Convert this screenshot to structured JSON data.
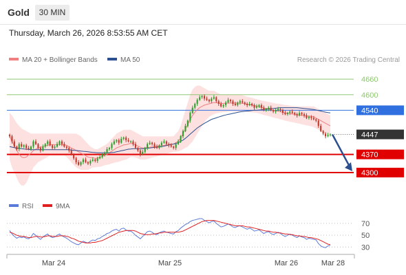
{
  "header": {
    "symbol": "Gold",
    "timeframe": "30 MIN",
    "datetime": "Thursday, March 26, 2026 8:53:55 AM CET"
  },
  "legend": {
    "ma20_label": "MA 20 + Bollinger Bands",
    "ma50_label": "MA 50",
    "copyright": "Research © 2026 Trading Central",
    "rsi_label": "RSI",
    "rsi_ma_label": "9MA"
  },
  "colors": {
    "ma20": "#f08080",
    "ma50": "#2b4f8f",
    "band_fill": "#fde0e0",
    "candle_up": "#2e9e2e",
    "candle_down": "#c0392b",
    "resistance": "#8fc873",
    "pivot": "#2f6fdf",
    "support": "#e00000",
    "current": "#333333",
    "arrow": "#2b4f8f",
    "rsi": "#5a7bd8",
    "rsi_ma": "#e02020"
  },
  "chart_data": [
    {
      "type": "candlestick",
      "ylim": [
        4210,
        4700
      ],
      "x_ticks": [
        "Mar 24",
        "Mar 25",
        "Mar 26",
        "Mar 28"
      ],
      "levels": [
        {
          "value": 4660,
          "label": "4660",
          "kind": "resistance"
        },
        {
          "value": 4600,
          "label": "4600",
          "kind": "resistance"
        },
        {
          "value": 4540,
          "label": "4540",
          "kind": "pivot"
        },
        {
          "value": 4447,
          "label": "4447",
          "kind": "current"
        },
        {
          "value": 4370,
          "label": "4370",
          "kind": "support"
        },
        {
          "value": 4300,
          "label": "4300",
          "kind": "support"
        }
      ],
      "close": [
        4440,
        4420,
        4400,
        4390,
        4410,
        4400,
        4405,
        4395,
        4390,
        4400,
        4420,
        4410,
        4395,
        4385,
        4400,
        4410,
        4420,
        4405,
        4395,
        4400,
        4410,
        4420,
        4410,
        4400,
        4395,
        4385,
        4370,
        4355,
        4340,
        4330,
        4340,
        4350,
        4340,
        4335,
        4345,
        4350,
        4345,
        4355,
        4360,
        4370,
        4375,
        4390,
        4395,
        4410,
        4420,
        4425,
        4415,
        4430,
        4435,
        4425,
        4420,
        4420,
        4410,
        4395,
        4385,
        4370,
        4380,
        4395,
        4410,
        4415,
        4410,
        4400,
        4395,
        4405,
        4415,
        4420,
        4410,
        4405,
        4400,
        4395,
        4410,
        4420,
        4440,
        4460,
        4480,
        4500,
        4530,
        4550,
        4565,
        4580,
        4590,
        4595,
        4585,
        4580,
        4575,
        4585,
        4590,
        4575,
        4565,
        4555,
        4560,
        4570,
        4580,
        4575,
        4565,
        4560,
        4570,
        4575,
        4570,
        4565,
        4560,
        4565,
        4560,
        4550,
        4555,
        4560,
        4550,
        4540,
        4545,
        4550,
        4540,
        4535,
        4540,
        4545,
        4540,
        4530,
        4525,
        4530,
        4535,
        4530,
        4525,
        4520,
        4530,
        4525,
        4520,
        4510,
        4515,
        4510,
        4505,
        4500,
        4480,
        4460,
        4450,
        4440,
        4445,
        4447
      ],
      "bollinger_upper": [
        4530,
        4520,
        4505,
        4490,
        4480,
        4470,
        4465,
        4460,
        4455,
        4450,
        4450,
        4450,
        4450,
        4450,
        4450,
        4450,
        4450,
        4450,
        4450,
        4450,
        4450,
        4450,
        4450,
        4450,
        4450,
        4450,
        4450,
        4450,
        4450,
        4445,
        4440,
        4430,
        4420,
        4410,
        4400,
        4395,
        4390,
        4390,
        4395,
        4400,
        4405,
        4410,
        4420,
        4430,
        4440,
        4450,
        4455,
        4460,
        4465,
        4465,
        4465,
        4465,
        4460,
        4455,
        4450,
        4445,
        4440,
        4440,
        4440,
        4440,
        4440,
        4440,
        4440,
        4440,
        4440,
        4440,
        4440,
        4440,
        4440,
        4440,
        4450,
        4460,
        4480,
        4510,
        4540,
        4570,
        4600,
        4620,
        4630,
        4635,
        4635,
        4630,
        4625,
        4620,
        4615,
        4615,
        4615,
        4610,
        4605,
        4600,
        4600,
        4600,
        4600,
        4600,
        4600,
        4600,
        4600,
        4600,
        4598,
        4595,
        4592,
        4590,
        4588,
        4585,
        4583,
        4580,
        4578,
        4576,
        4574,
        4572,
        4570,
        4568,
        4566,
        4565,
        4564,
        4562,
        4560,
        4560,
        4558,
        4557,
        4556,
        4555,
        4555,
        4555,
        4555,
        4555,
        4555,
        4555,
        4555,
        4550,
        4545,
        4540,
        4535,
        4530,
        4525,
        4520
      ],
      "bollinger_lower": [
        4350,
        4320,
        4300,
        4280,
        4260,
        4250,
        4250,
        4260,
        4280,
        4300,
        4320,
        4330,
        4340,
        4345,
        4350,
        4355,
        4360,
        4365,
        4365,
        4365,
        4365,
        4365,
        4365,
        4365,
        4360,
        4350,
        4340,
        4330,
        4320,
        4315,
        4310,
        4310,
        4310,
        4310,
        4315,
        4320,
        4320,
        4322,
        4322,
        4325,
        4328,
        4330,
        4332,
        4335,
        4338,
        4340,
        4342,
        4345,
        4348,
        4350,
        4355,
        4360,
        4360,
        4358,
        4355,
        4350,
        4350,
        4350,
        4352,
        4355,
        4358,
        4360,
        4362,
        4365,
        4368,
        4370,
        4372,
        4375,
        4378,
        4380,
        4380,
        4382,
        4385,
        4390,
        4395,
        4400,
        4410,
        4420,
        4435,
        4450,
        4465,
        4480,
        4495,
        4505,
        4515,
        4520,
        4525,
        4528,
        4530,
        4532,
        4533,
        4534,
        4535,
        4535,
        4535,
        4535,
        4535,
        4535,
        4535,
        4535,
        4534,
        4533,
        4532,
        4531,
        4530,
        4528,
        4525,
        4522,
        4520,
        4518,
        4515,
        4512,
        4510,
        4508,
        4505,
        4503,
        4500,
        4498,
        4496,
        4494,
        4492,
        4490,
        4488,
        4486,
        4484,
        4482,
        4480,
        4478,
        4475,
        4470,
        4465,
        4460,
        4455,
        4450,
        4445,
        4440
      ],
      "ma50": [
        4400,
        4398,
        4396,
        4394,
        4393,
        4392,
        4391,
        4390,
        4389,
        4388,
        4388,
        4388,
        4388,
        4388,
        4388,
        4388,
        4388,
        4388,
        4388,
        4388,
        4388,
        4388,
        4388,
        4388,
        4388,
        4388,
        4387,
        4386,
        4385,
        4384,
        4383,
        4382,
        4381,
        4380,
        4379,
        4378,
        4377,
        4376,
        4376,
        4376,
        4376,
        4376,
        4376,
        4377,
        4378,
        4380,
        4382,
        4384,
        4386,
        4388,
        4390,
        4391,
        4392,
        4392,
        4392,
        4392,
        4392,
        4393,
        4394,
        4395,
        4396,
        4397,
        4398,
        4399,
        4400,
        4402,
        4404,
        4406,
        4408,
        4410,
        4412,
        4415,
        4420,
        4425,
        4432,
        4440,
        4448,
        4456,
        4464,
        4472,
        4478,
        4484,
        4490,
        4495,
        4500,
        4505,
        4508,
        4511,
        4514,
        4517,
        4520,
        4522,
        4524,
        4526,
        4528,
        4530,
        4532,
        4534,
        4535,
        4536,
        4537,
        4538,
        4539,
        4540,
        4540,
        4541,
        4542,
        4543,
        4544,
        4545,
        4546,
        4547,
        4548,
        4549,
        4550,
        4550,
        4550,
        4550,
        4550,
        4550,
        4550,
        4550,
        4549,
        4548,
        4547,
        4546,
        4545,
        4544,
        4543,
        4541,
        4539,
        4537,
        4535,
        4533,
        4531,
        4530
      ]
    },
    {
      "type": "line",
      "ylim": [
        20,
        85
      ],
      "y_ticks": [
        70,
        50,
        30
      ],
      "rsi": [
        58,
        52,
        48,
        45,
        47,
        46,
        47,
        45,
        44,
        47,
        53,
        50,
        46,
        43,
        47,
        50,
        52,
        48,
        46,
        47,
        50,
        52,
        49,
        47,
        45,
        42,
        39,
        37,
        35,
        34,
        37,
        40,
        38,
        37,
        40,
        42,
        41,
        44,
        45,
        48,
        50,
        53,
        54,
        57,
        59,
        60,
        57,
        61,
        62,
        59,
        57,
        57,
        54,
        50,
        47,
        44,
        48,
        52,
        56,
        57,
        55,
        52,
        51,
        54,
        56,
        57,
        55,
        54,
        53,
        52,
        56,
        58,
        62,
        65,
        68,
        70,
        73,
        75,
        76,
        77,
        78,
        78,
        75,
        73,
        71,
        73,
        74,
        70,
        67,
        64,
        65,
        67,
        69,
        67,
        64,
        63,
        65,
        66,
        64,
        62,
        60,
        62,
        60,
        57,
        58,
        59,
        56,
        53,
        55,
        56,
        53,
        51,
        53,
        55,
        53,
        50,
        48,
        50,
        52,
        50,
        48,
        46,
        49,
        47,
        46,
        43,
        45,
        44,
        43,
        42,
        36,
        32,
        30,
        29,
        32,
        33
      ],
      "rsi_ma": [
        55,
        54,
        52,
        50,
        49,
        48,
        48,
        47,
        46,
        46,
        47,
        48,
        48,
        47,
        47,
        48,
        49,
        49,
        48,
        48,
        48,
        49,
        49,
        49,
        48,
        47,
        45,
        44,
        42,
        40,
        39,
        38,
        37,
        37,
        37,
        38,
        38,
        39,
        40,
        41,
        43,
        45,
        47,
        49,
        51,
        53,
        55,
        56,
        57,
        58,
        58,
        58,
        58,
        57,
        55,
        53,
        52,
        51,
        51,
        51,
        52,
        52,
        53,
        54,
        54,
        55,
        55,
        55,
        55,
        55,
        55,
        55,
        56,
        57,
        59,
        61,
        63,
        65,
        67,
        69,
        71,
        73,
        74,
        75,
        75,
        75,
        75,
        74,
        73,
        72,
        71,
        70,
        69,
        68,
        67,
        66,
        66,
        66,
        66,
        65,
        64,
        64,
        63,
        62,
        61,
        60,
        59,
        58,
        57,
        57,
        56,
        55,
        55,
        54,
        54,
        53,
        52,
        52,
        51,
        51,
        50,
        49,
        49,
        48,
        48,
        47,
        46,
        46,
        45,
        44,
        43,
        41,
        39,
        37,
        35,
        34
      ]
    }
  ]
}
